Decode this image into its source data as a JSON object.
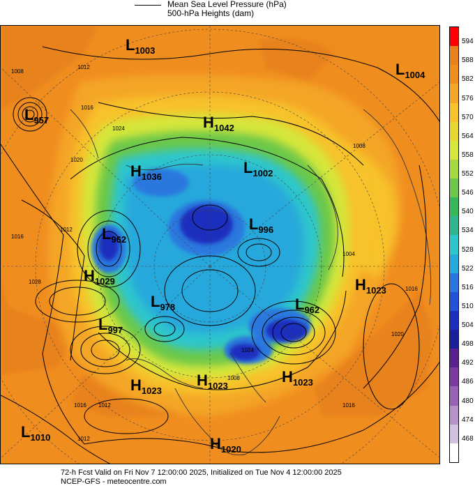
{
  "header": {
    "line1": "Mean Sea Level Pressure (hPa)",
    "line2": "500-hPa Heights (dam)"
  },
  "footer": {
    "line1": "72-h Fcst Valid on Fri Nov  7 12:00:00 2025, Initialized on Tue Nov  4 12:00:00 2025",
    "line2": "NCEP-GFS  - meteocentre.com"
  },
  "colorbar": {
    "labels": [
      "594",
      "588",
      "582",
      "576",
      "570",
      "564",
      "558",
      "552",
      "546",
      "540",
      "534",
      "528",
      "522",
      "516",
      "510",
      "504",
      "498",
      "492",
      "486",
      "480",
      "474",
      "468"
    ],
    "colors": [
      "#ff0000",
      "#e8821e",
      "#f08d1f",
      "#f4a628",
      "#f7c22c",
      "#e8d830",
      "#d6e63a",
      "#a4d940",
      "#6cc84a",
      "#36b85a",
      "#30b58f",
      "#2dc6cc",
      "#27a8dc",
      "#2a78de",
      "#2152d8",
      "#1c2ebd",
      "#1a209a",
      "#5a2090",
      "#7a3aa2",
      "#9863b6",
      "#b592c8",
      "#d2c2e0",
      "#ffffff"
    ]
  },
  "pressure_centers": [
    {
      "type": "L",
      "value": "1003"
    },
    {
      "type": "L",
      "value": "1004"
    },
    {
      "type": "L",
      "value": "957"
    },
    {
      "type": "H",
      "value": "1042"
    },
    {
      "type": "H",
      "value": "1036"
    },
    {
      "type": "L",
      "value": "1002"
    },
    {
      "type": "L",
      "value": "996"
    },
    {
      "type": "L",
      "value": "962"
    },
    {
      "type": "H",
      "value": "1029"
    },
    {
      "type": "H",
      "value": "1023"
    },
    {
      "type": "L",
      "value": "978"
    },
    {
      "type": "L",
      "value": "962"
    },
    {
      "type": "L",
      "value": "997"
    },
    {
      "type": "H",
      "value": "1023"
    },
    {
      "type": "H",
      "value": "1023"
    },
    {
      "type": "H",
      "value": "1023"
    },
    {
      "type": "L",
      "value": "1010"
    },
    {
      "type": "H",
      "value": "1020"
    }
  ],
  "isobar_labels": [
    "1008",
    "1012",
    "1016",
    "1020",
    "1024",
    "1028",
    "1012",
    "1016",
    "1016",
    "1008",
    "1004",
    "1020",
    "1016",
    "1024",
    "1008",
    "1012",
    "1016",
    "1012"
  ]
}
